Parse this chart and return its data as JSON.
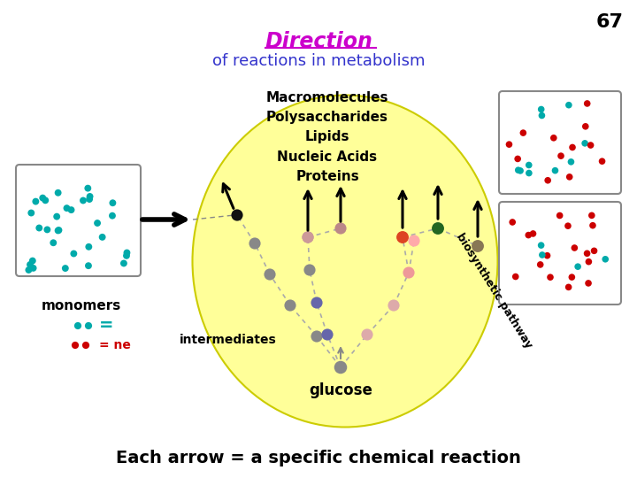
{
  "title_direction": "Direction",
  "title_subtitle": "of reactions in metabolism",
  "bottom_text": "Each arrow = a specific chemical reaction",
  "slide_number": "67",
  "macromolecules_text": "Macromolecules\nPolysaccharides\nLipids\nNucleic Acids\nProteins",
  "glucose_label": "glucose",
  "intermediates_label": "intermediates",
  "monomers_label": "monomers",
  "biosynthetic_label": "biosynthetic pathway",
  "bg_color": "#ffffff",
  "ellipse_color": "#ffff99",
  "ellipse_edge": "#cccc00",
  "title_color": "#cc00cc",
  "subtitle_color": "#3333cc"
}
